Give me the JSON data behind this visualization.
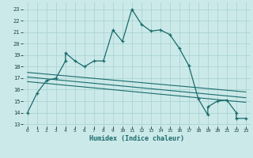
{
  "xlabel": "Humidex (Indice chaleur)",
  "xlim": [
    -0.5,
    23.5
  ],
  "ylim": [
    12.8,
    23.6
  ],
  "yticks": [
    13,
    14,
    15,
    16,
    17,
    18,
    19,
    20,
    21,
    22,
    23
  ],
  "xticks": [
    0,
    1,
    2,
    3,
    4,
    5,
    6,
    7,
    8,
    9,
    10,
    11,
    12,
    13,
    14,
    15,
    16,
    17,
    18,
    19,
    20,
    21,
    22,
    23
  ],
  "background_color": "#cce9e9",
  "grid_color": "#aad4d4",
  "line_color": "#1a6b6b",
  "curve1_x": [
    0,
    1,
    2,
    3,
    4,
    4,
    5,
    6,
    7,
    8,
    9,
    10,
    11,
    12,
    13,
    14,
    15,
    16,
    17,
    18,
    19,
    19,
    20,
    21,
    22,
    22,
    23
  ],
  "curve1_y": [
    14.0,
    15.7,
    16.8,
    17.0,
    18.5,
    19.2,
    18.5,
    18.0,
    18.5,
    18.5,
    21.2,
    20.2,
    23.0,
    21.7,
    21.1,
    21.2,
    20.8,
    19.6,
    18.1,
    15.2,
    13.8,
    14.5,
    15.0,
    15.1,
    14.0,
    13.5,
    13.5
  ],
  "line3_x": [
    0,
    23
  ],
  "line3_y": [
    17.5,
    15.8
  ],
  "line4_x": [
    0,
    23
  ],
  "line4_y": [
    17.1,
    15.3
  ],
  "line5_x": [
    0,
    23
  ],
  "line5_y": [
    16.7,
    14.9
  ]
}
